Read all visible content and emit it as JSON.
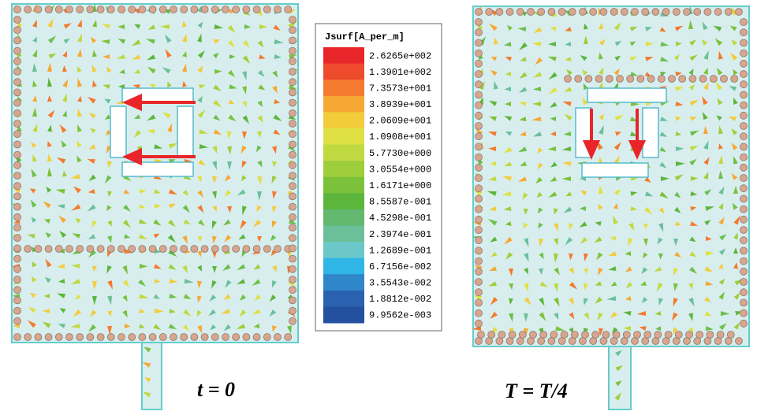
{
  "legend": {
    "title": "Jsurf[A_per_m]",
    "entries": [
      {
        "label": "2.6265e+002",
        "color": "#e8262a"
      },
      {
        "label": "1.3901e+002",
        "color": "#ee4a2c"
      },
      {
        "label": "7.3573e+001",
        "color": "#f37a2e"
      },
      {
        "label": "3.8939e+001",
        "color": "#f6a833"
      },
      {
        "label": "2.0609e+001",
        "color": "#f2cc3b"
      },
      {
        "label": "1.0908e+001",
        "color": "#dfe044"
      },
      {
        "label": "5.7730e+000",
        "color": "#c0d940"
      },
      {
        "label": "3.0554e+000",
        "color": "#9ece3c"
      },
      {
        "label": "1.6171e+000",
        "color": "#7cc13a"
      },
      {
        "label": "8.5587e-001",
        "color": "#5db63c"
      },
      {
        "label": "4.5298e-001",
        "color": "#63b86f"
      },
      {
        "label": "2.3974e-001",
        "color": "#6bc09a"
      },
      {
        "label": "1.2689e-001",
        "color": "#6cc8c8"
      },
      {
        "label": "6.7156e-002",
        "color": "#2fb6e6"
      },
      {
        "label": "3.5543e-002",
        "color": "#2f86c8"
      },
      {
        "label": "1.8812e-002",
        "color": "#2b62b0"
      },
      {
        "label": "9.9562e-003",
        "color": "#2450a0"
      }
    ]
  },
  "panels": [
    {
      "caption": "t = 0"
    },
    {
      "caption": "T = T/4"
    }
  ]
}
